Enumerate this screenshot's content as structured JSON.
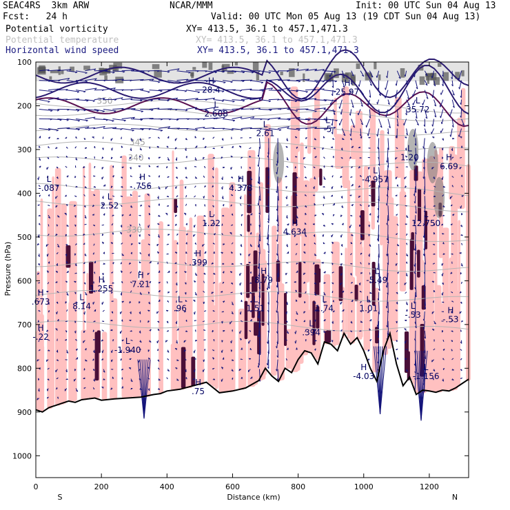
{
  "header": {
    "model": "SEAC4RS  3km ARW",
    "org": "NCAR/MMM",
    "init": "Init: 00 UTC Sun 04 Aug 13",
    "fcst": "Fcst:   24 h",
    "valid": "Valid: 00 UTC Mon 05 Aug 13 (19 CDT Sun 04 Aug 13)",
    "fields": [
      {
        "name": "Potential vorticity",
        "xy": "XY= 413.5, 36.1 to 457.1,471.3",
        "color": "#000000"
      },
      {
        "name": "Potential temperature",
        "xy": "XY= 413.5, 36.1 to 457.1,471.3",
        "color": "#c0c0c0"
      },
      {
        "name": "Horizontal wind speed",
        "xy": "XY= 413.5, 36.1 to 457.1,471.3",
        "color": "#1a1a80"
      }
    ]
  },
  "colors": {
    "pv_positive": "#ffc0c0",
    "pv_dark": "#4a0f38",
    "theta": "#b4b4b4",
    "wind": "#14147a",
    "terrain": "#000000"
  },
  "chart_data": {
    "type": "cross-section",
    "xlabel": "Distance (km)",
    "ylabel": "Pressure (hPa)",
    "xlim": [
      0,
      1320
    ],
    "ylim": [
      1050,
      100
    ],
    "x_ticks": [
      "0",
      "200",
      "400",
      "600",
      "800",
      "1000",
      "1200"
    ],
    "y_ticks": [
      "100",
      "200",
      "300",
      "400",
      "500",
      "600",
      "700",
      "800",
      "900",
      "1000"
    ],
    "x_ends": {
      "left": "S",
      "right": "N"
    },
    "terrain_surface": {
      "distance": [
        0,
        20,
        40,
        60,
        80,
        100,
        120,
        140,
        160,
        180,
        200,
        240,
        280,
        320,
        360,
        380,
        400,
        440,
        480,
        520,
        560,
        600,
        640,
        680,
        700,
        720,
        740,
        760,
        780,
        800,
        820,
        840,
        860,
        880,
        900,
        920,
        940,
        960,
        980,
        1000,
        1020,
        1040,
        1060,
        1080,
        1100,
        1120,
        1140,
        1160,
        1180,
        1200,
        1220,
        1240,
        1260,
        1280,
        1300,
        1320
      ],
      "pressure": [
        895,
        900,
        890,
        885,
        880,
        875,
        878,
        872,
        870,
        868,
        873,
        870,
        868,
        866,
        860,
        858,
        852,
        848,
        840,
        832,
        856,
        852,
        845,
        828,
        800,
        818,
        830,
        800,
        810,
        780,
        760,
        765,
        790,
        740,
        745,
        760,
        720,
        745,
        730,
        760,
        800,
        830,
        760,
        720,
        790,
        840,
        820,
        860,
        850,
        852,
        855,
        850,
        852,
        845,
        835,
        825
      ]
    },
    "theta_contours": [
      {
        "label": "330",
        "label_distance": 300,
        "label_pressure": 490
      },
      {
        "label": "340",
        "label_distance": 305,
        "label_pressure": 325
      },
      {
        "label": "345",
        "label_distance": 310,
        "label_pressure": 290
      },
      {
        "label": "350",
        "label_distance": 210,
        "label_pressure": 195
      }
    ],
    "annotations": [
      {
        "kind": "L",
        "value": "-.087",
        "distance": 40,
        "pressure": 390
      },
      {
        "kind": "H",
        "value": ".756",
        "distance": 325,
        "pressure": 385
      },
      {
        "kind": "L",
        "value": "2.52",
        "distance": 225,
        "pressure": 430
      },
      {
        "kind": "L",
        "value": "1.22",
        "distance": 535,
        "pressure": 470
      },
      {
        "kind": "H",
        "value": "4.378",
        "distance": 625,
        "pressure": 390
      },
      {
        "kind": "H",
        "value": "4.634",
        "distance": 790,
        "pressure": 490
      },
      {
        "kind": "L",
        "value": "-4.957",
        "distance": 1035,
        "pressure": 370
      },
      {
        "kind": "L",
        "value": "12.750",
        "distance": 1190,
        "pressure": 470
      },
      {
        "kind": "H",
        "value": "6.69",
        "distance": 1260,
        "pressure": 340
      },
      {
        "kind": "H",
        "value": ".673",
        "distance": 15,
        "pressure": 650
      },
      {
        "kind": "L",
        "value": "8.14",
        "distance": 140,
        "pressure": 660
      },
      {
        "kind": "H",
        "value": "1.255",
        "distance": 200,
        "pressure": 620
      },
      {
        "kind": "H",
        "value": "7.21",
        "distance": 320,
        "pressure": 610
      },
      {
        "kind": "H",
        "value": ".399",
        "distance": 495,
        "pressure": 560
      },
      {
        "kind": "L",
        "value": ".96",
        "distance": 440,
        "pressure": 665
      },
      {
        "kind": "L",
        "value": "1.51",
        "distance": 670,
        "pressure": 665
      },
      {
        "kind": "H",
        "value": "8.79",
        "distance": 695,
        "pressure": 600
      },
      {
        "kind": "L",
        "value": "-5.49",
        "distance": 1040,
        "pressure": 600
      },
      {
        "kind": "L",
        "value": "1.74",
        "distance": 880,
        "pressure": 665
      },
      {
        "kind": "L",
        "value": "1.01",
        "distance": 1015,
        "pressure": 665
      },
      {
        "kind": "L",
        "value": "-.53",
        "distance": 1150,
        "pressure": 680
      },
      {
        "kind": "H",
        "value": "-.22",
        "distance": 15,
        "pressure": 730
      },
      {
        "kind": "L",
        "value": "-1.940",
        "distance": 280,
        "pressure": 760
      },
      {
        "kind": "L",
        "value": ".394",
        "distance": 840,
        "pressure": 720
      },
      {
        "kind": "H",
        "value": "-4.03",
        "distance": 1000,
        "pressure": 820
      },
      {
        "kind": "L",
        "value": "-1.156",
        "distance": 1190,
        "pressure": 820
      },
      {
        "kind": "H",
        "value": "-.53",
        "distance": 1265,
        "pressure": 690
      },
      {
        "kind": "L",
        "value": "2.608",
        "distance": 550,
        "pressure": 220
      },
      {
        "kind": "H",
        "value": "28.4",
        "distance": 535,
        "pressure": 165
      },
      {
        "kind": "L",
        "value": "2.61",
        "distance": 700,
        "pressure": 265
      },
      {
        "kind": "L",
        "value": "-5",
        "distance": 890,
        "pressure": 255
      },
      {
        "kind": "H",
        "value": "25.97",
        "distance": 950,
        "pressure": 170
      },
      {
        "kind": "L",
        "value": "35.72",
        "distance": 1165,
        "pressure": 210
      },
      {
        "kind": "L",
        "value": "1.20",
        "distance": 1140,
        "pressure": 320
      },
      {
        "kind": "H",
        "value": ".75",
        "distance": 495,
        "pressure": 855
      }
    ]
  }
}
